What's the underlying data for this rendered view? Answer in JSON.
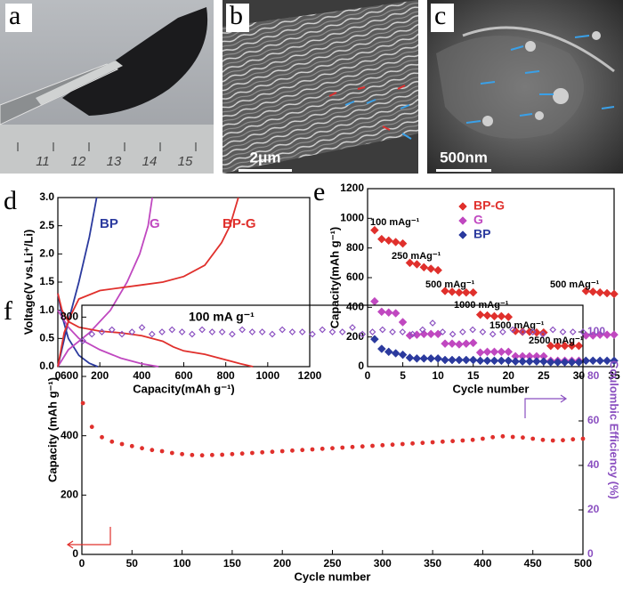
{
  "figure": {
    "panel_labels": [
      "a",
      "b",
      "c",
      "d",
      "e",
      "f"
    ],
    "scale_bars": [
      "2μm",
      "500nm"
    ],
    "ruler_labels": [
      "11",
      "12",
      "13",
      "14",
      "15"
    ]
  },
  "chart_data": [
    {
      "type": "line",
      "xlabel": "Capacity(mAh g⁻¹)",
      "ylabel": "Voltage(V vs.Li⁺/Li)",
      "annotations": [
        "100 mA g⁻¹"
      ],
      "xlim": [
        0,
        1200
      ],
      "xticks": [
        0,
        200,
        400,
        600,
        800,
        1000,
        1200
      ],
      "ylim": [
        0,
        3
      ],
      "yticks": [
        {
          "value": 0,
          "label": "0.0"
        },
        0.5,
        {
          "value": 1,
          "label": "1.0"
        },
        1.5,
        {
          "value": 2,
          "label": "2.0"
        },
        2.5,
        {
          "value": 3,
          "label": "3.0"
        }
      ],
      "series": [
        {
          "name": "BP",
          "color": "#2b3a9e",
          "x": [
            0,
            20,
            50,
            100,
            150,
            190,
            null,
            0,
            50,
            100,
            150,
            185
          ],
          "values": [
            1.3,
            0.9,
            0.5,
            0.2,
            0.06,
            0,
            null,
            0,
            0.8,
            1.5,
            2.3,
            3
          ]
        },
        {
          "name": "G",
          "color": "#c048c0",
          "x": [
            0,
            50,
            100,
            200,
            300,
            400,
            480,
            null,
            0,
            50,
            150,
            250,
            330,
            390,
            430,
            450
          ],
          "values": [
            1,
            0.7,
            0.5,
            0.3,
            0.15,
            0.05,
            0,
            null,
            0,
            0.3,
            0.6,
            1,
            1.5,
            2,
            2.5,
            3
          ]
        },
        {
          "name": "BP-G",
          "color": "#e0302c",
          "x": [
            0,
            20,
            50,
            100,
            200,
            300,
            400,
            500,
            550,
            600,
            700,
            800,
            870,
            930,
            null,
            0,
            30,
            60,
            100,
            200,
            400,
            500,
            600,
            700,
            780,
            820,
            860
          ],
          "values": [
            1.3,
            1,
            0.8,
            0.7,
            0.63,
            0.6,
            0.55,
            0.45,
            0.35,
            0.28,
            0.22,
            0.12,
            0.05,
            0,
            null,
            0,
            0.6,
            0.9,
            1.2,
            1.35,
            1.45,
            1.5,
            1.6,
            1.8,
            2.2,
            2.5,
            3
          ]
        }
      ]
    },
    {
      "type": "scatter",
      "xlabel": "Cycle number",
      "ylabel": "Capacity(mAh g⁻¹)",
      "legend": "upper right",
      "annotations": [
        "100 mAg⁻¹",
        "250 mAg⁻¹",
        "500 mAg⁻¹",
        "1000 mAg⁻¹",
        "1500 mAg⁻¹",
        "2500 mAg⁻¹",
        "500 mAg⁻¹"
      ],
      "xlim": [
        0,
        35
      ],
      "xticks": [
        0,
        5,
        10,
        15,
        20,
        25,
        30,
        35
      ],
      "ylim": [
        0,
        1200
      ],
      "yticks": [
        0,
        200,
        400,
        600,
        800,
        1000,
        1200
      ],
      "x": [
        1,
        2,
        3,
        4,
        5,
        6,
        7,
        8,
        9,
        10,
        11,
        12,
        13,
        14,
        15,
        16,
        17,
        18,
        19,
        20,
        21,
        22,
        23,
        24,
        25,
        26,
        27,
        28,
        29,
        30,
        31,
        32,
        33,
        34,
        35
      ],
      "series": [
        {
          "name": "BP-G",
          "color": "#e0302c",
          "marker": "diamond",
          "values": [
            920,
            860,
            850,
            840,
            830,
            700,
            690,
            670,
            660,
            650,
            510,
            505,
            500,
            500,
            500,
            350,
            345,
            340,
            340,
            335,
            240,
            235,
            235,
            230,
            230,
            140,
            140,
            140,
            140,
            140,
            510,
            505,
            500,
            495,
            490
          ]
        },
        {
          "name": "G",
          "color": "#c048c0",
          "marker": "diamond",
          "values": [
            440,
            370,
            365,
            360,
            300,
            210,
            215,
            220,
            220,
            220,
            155,
            155,
            150,
            155,
            160,
            95,
            100,
            100,
            100,
            100,
            70,
            70,
            70,
            70,
            70,
            40,
            40,
            40,
            40,
            40,
            210,
            210,
            215,
            215,
            215
          ]
        },
        {
          "name": "BP",
          "color": "#2b3a9e",
          "marker": "diamond",
          "values": [
            185,
            120,
            100,
            90,
            80,
            60,
            55,
            55,
            55,
            55,
            45,
            45,
            45,
            45,
            45,
            40,
            40,
            40,
            40,
            40,
            35,
            35,
            35,
            35,
            35,
            30,
            30,
            30,
            30,
            30,
            40,
            40,
            40,
            40,
            40
          ]
        }
      ]
    },
    {
      "type": "scatter",
      "xlabel": "Cycle number",
      "ylabel": "Capacity (mAh g⁻¹)",
      "y2label": "Coulombic Efficiency (%)",
      "xlim": [
        0,
        500
      ],
      "xticks": [
        0,
        50,
        100,
        150,
        200,
        250,
        300,
        350,
        400,
        450,
        500
      ],
      "ylim": [
        0,
        840
      ],
      "yticks": [
        0,
        200,
        400,
        600,
        800
      ],
      "y2lim": [
        0,
        112
      ],
      "y2ticks": [
        0,
        20,
        40,
        60,
        80,
        100
      ],
      "x": [
        1,
        10,
        20,
        30,
        40,
        50,
        60,
        70,
        80,
        90,
        100,
        110,
        120,
        130,
        140,
        150,
        160,
        170,
        180,
        190,
        200,
        210,
        220,
        230,
        240,
        250,
        260,
        270,
        280,
        290,
        300,
        310,
        320,
        330,
        340,
        350,
        360,
        370,
        380,
        390,
        400,
        410,
        420,
        430,
        440,
        450,
        460,
        470,
        480,
        490,
        500
      ],
      "series": [
        {
          "color": "#e0302c",
          "marker": "circle",
          "values": [
            510,
            430,
            395,
            380,
            372,
            365,
            358,
            352,
            348,
            342,
            338,
            335,
            334,
            335,
            336,
            338,
            340,
            342,
            344,
            346,
            348,
            350,
            352,
            354,
            356,
            358,
            360,
            362,
            364,
            366,
            368,
            370,
            372,
            374,
            376,
            378,
            380,
            382,
            384,
            386,
            390,
            395,
            398,
            396,
            394,
            390,
            386,
            384,
            385,
            388,
            390
          ]
        },
        {
          "color": "#8a4fc0",
          "marker": "diamond-open",
          "axis": "y2",
          "values": [
            96,
            99,
            100,
            101,
            99,
            100,
            102,
            99,
            100,
            101,
            100,
            99,
            101,
            100,
            100,
            99,
            101,
            100,
            100,
            99,
            101,
            100,
            100,
            99,
            101,
            100,
            100,
            102,
            99,
            100,
            101,
            100,
            100,
            99,
            101,
            104,
            100,
            99,
            100,
            101,
            100,
            99,
            100,
            101,
            100,
            100,
            99,
            101,
            100,
            100,
            100
          ]
        }
      ]
    }
  ]
}
